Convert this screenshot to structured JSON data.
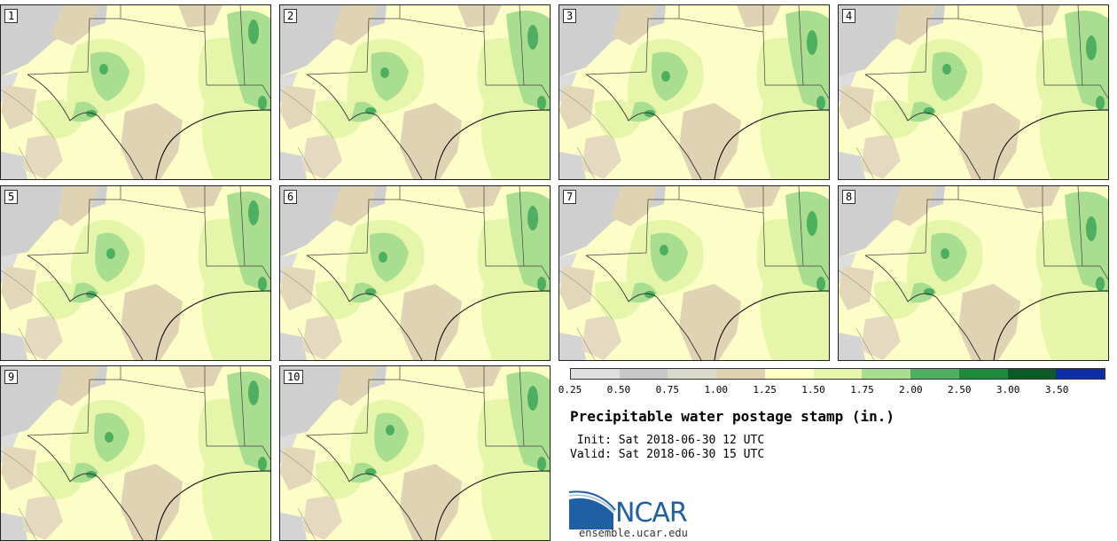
{
  "panels": [
    {
      "label": "1"
    },
    {
      "label": "2"
    },
    {
      "label": "3"
    },
    {
      "label": "4"
    },
    {
      "label": "5"
    },
    {
      "label": "6"
    },
    {
      "label": "7"
    },
    {
      "label": "8"
    },
    {
      "label": "9"
    },
    {
      "label": "10"
    }
  ],
  "colorbar": {
    "colors": [
      "#dedede",
      "#c8c8c8",
      "#d9d9c9",
      "#dfd3b3",
      "#fefec7",
      "#e5f5a9",
      "#a9dd8f",
      "#4daf5f",
      "#1e8a3c",
      "#0c5a25",
      "#0e2ea8"
    ],
    "ticks": [
      "0.25",
      "0.50",
      "0.75",
      "1.00",
      "1.25",
      "1.50",
      "1.75",
      "2.00",
      "2.50",
      "3.00",
      "3.50"
    ]
  },
  "title": "Precipitable water postage stamp (in.)",
  "init_line": " Init: Sat 2018-06-30 12 UTC",
  "valid_line": "Valid: Sat 2018-06-30 15 UTC",
  "logo_text": "NCAR",
  "website": "ensemble.ucar.edu"
}
